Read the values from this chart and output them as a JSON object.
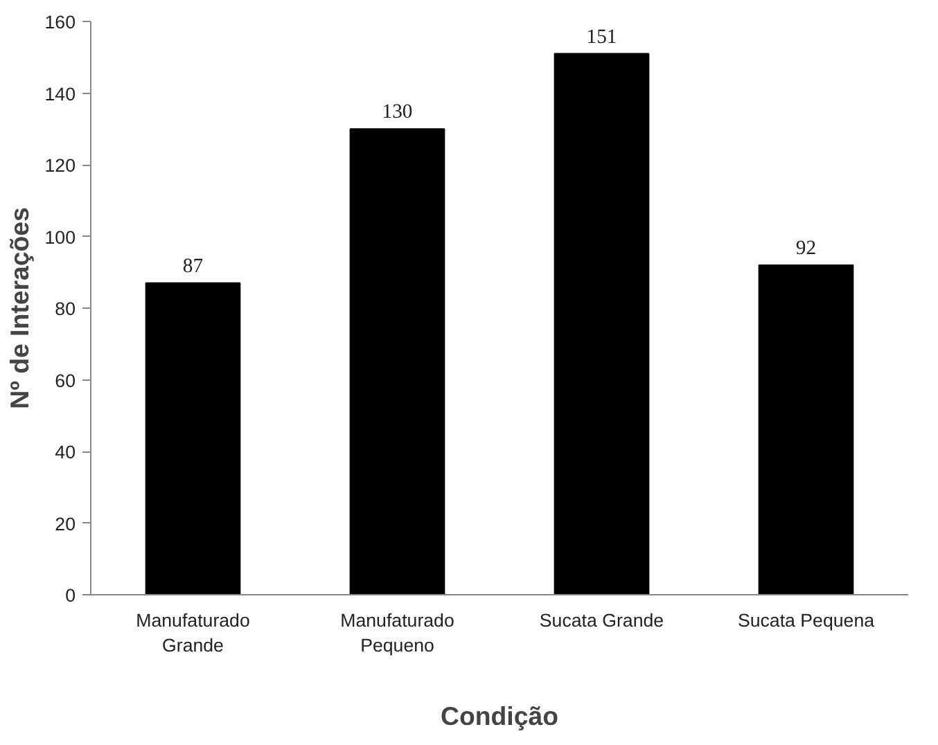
{
  "chart_data": {
    "type": "bar",
    "xlabel": "Condição",
    "ylabel": "Nº de Interações",
    "categories": [
      "Manufaturado\nGrande",
      "Manufaturado\nPequeno",
      "Sucata Grande",
      "Sucata Pequena"
    ],
    "values": [
      87,
      130,
      151,
      92
    ],
    "color": "#000000",
    "data_labels": true,
    "grid": false,
    "ylim": [
      0,
      160
    ],
    "yticks": [
      0,
      20,
      40,
      60,
      80,
      100,
      120,
      140,
      160
    ]
  }
}
